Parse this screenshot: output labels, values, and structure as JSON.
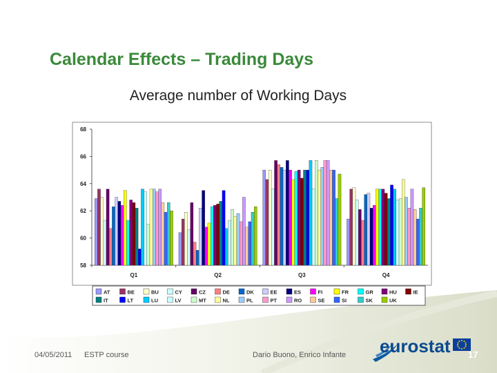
{
  "slide": {
    "title": "Calendar Effects – Trading Days"
  },
  "footer": {
    "date": "04/05/2011",
    "course": "ESTP course",
    "authors": "Dario Buono, Enrico Infante",
    "page": "17",
    "logo_text": "eurostat"
  },
  "chart_data": {
    "type": "bar",
    "title": "Average number of Working Days",
    "xlabel": "",
    "ylabel": "",
    "ylim": [
      58,
      68
    ],
    "yticks": [
      "58",
      "60",
      "62",
      "64",
      "66",
      "68"
    ],
    "grid": false,
    "legend": "bottom",
    "categories": [
      "Q1",
      "Q2",
      "Q3",
      "Q4"
    ],
    "series": [
      {
        "name": "AT",
        "color": "#9999ff",
        "values": [
          62.9,
          60.4,
          65.0,
          61.4
        ]
      },
      {
        "name": "BE",
        "color": "#993366",
        "values": [
          63.6,
          61.4,
          64.3,
          63.6
        ]
      },
      {
        "name": "BU",
        "color": "#ffffcc",
        "values": [
          63.0,
          61.9,
          65.0,
          63.7
        ]
      },
      {
        "name": "CY",
        "color": "#ccffff",
        "values": [
          61.3,
          60.6,
          63.6,
          62.8
        ]
      },
      {
        "name": "CZ",
        "color": "#660066",
        "values": [
          63.6,
          62.6,
          65.7,
          62.1
        ]
      },
      {
        "name": "DE",
        "color": "#ff8080",
        "values": [
          60.7,
          59.7,
          65.4,
          61.3
        ]
      },
      {
        "name": "DK",
        "color": "#0066cc",
        "values": [
          62.3,
          59.1,
          65.2,
          63.2
        ]
      },
      {
        "name": "EE",
        "color": "#ccccff",
        "values": [
          63.0,
          62.2,
          65.0,
          63.3
        ]
      },
      {
        "name": "ES",
        "color": "#000080",
        "values": [
          62.7,
          63.5,
          65.7,
          62.2
        ]
      },
      {
        "name": "FI",
        "color": "#ff00ff",
        "values": [
          62.4,
          60.8,
          65.0,
          62.4
        ]
      },
      {
        "name": "FR",
        "color": "#ffff00",
        "values": [
          63.5,
          61.1,
          64.3,
          63.6
        ]
      },
      {
        "name": "GR",
        "color": "#00ffff",
        "values": [
          61.3,
          62.3,
          64.9,
          63.6
        ]
      },
      {
        "name": "HU",
        "color": "#800080",
        "values": [
          62.8,
          62.4,
          65.0,
          63.6
        ]
      },
      {
        "name": "IE",
        "color": "#800000",
        "values": [
          62.6,
          62.5,
          64.4,
          63.3
        ]
      },
      {
        "name": "IT",
        "color": "#008080",
        "values": [
          62.2,
          62.7,
          65.0,
          62.9
        ]
      },
      {
        "name": "LT",
        "color": "#0000ff",
        "values": [
          59.2,
          63.5,
          65.0,
          63.9
        ]
      },
      {
        "name": "LU",
        "color": "#00ccff",
        "values": [
          63.6,
          60.7,
          65.7,
          63.6
        ]
      },
      {
        "name": "LV",
        "color": "#ccffff",
        "values": [
          63.4,
          61.3,
          63.6,
          62.8
        ]
      },
      {
        "name": "MT",
        "color": "#ccffcc",
        "values": [
          61.0,
          62.1,
          65.7,
          62.9
        ]
      },
      {
        "name": "NL",
        "color": "#ffff99",
        "values": [
          63.6,
          61.6,
          65.0,
          64.3
        ]
      },
      {
        "name": "PL",
        "color": "#99ccff",
        "values": [
          63.6,
          61.8,
          65.2,
          63.0
        ]
      },
      {
        "name": "PT",
        "color": "#ff99cc",
        "values": [
          63.4,
          61.2,
          65.7,
          62.2
        ]
      },
      {
        "name": "RO",
        "color": "#cc99ff",
        "values": [
          63.6,
          63.0,
          65.7,
          63.6
        ]
      },
      {
        "name": "SE",
        "color": "#ffcc99",
        "values": [
          62.6,
          60.8,
          65.0,
          62.1
        ]
      },
      {
        "name": "SI",
        "color": "#3366ff",
        "values": [
          61.9,
          61.2,
          65.0,
          61.4
        ]
      },
      {
        "name": "SK",
        "color": "#33cccc",
        "values": [
          62.6,
          61.9,
          62.9,
          62.2
        ]
      },
      {
        "name": "UK",
        "color": "#99cc00",
        "values": [
          62.0,
          62.3,
          64.7,
          63.7
        ]
      }
    ]
  }
}
